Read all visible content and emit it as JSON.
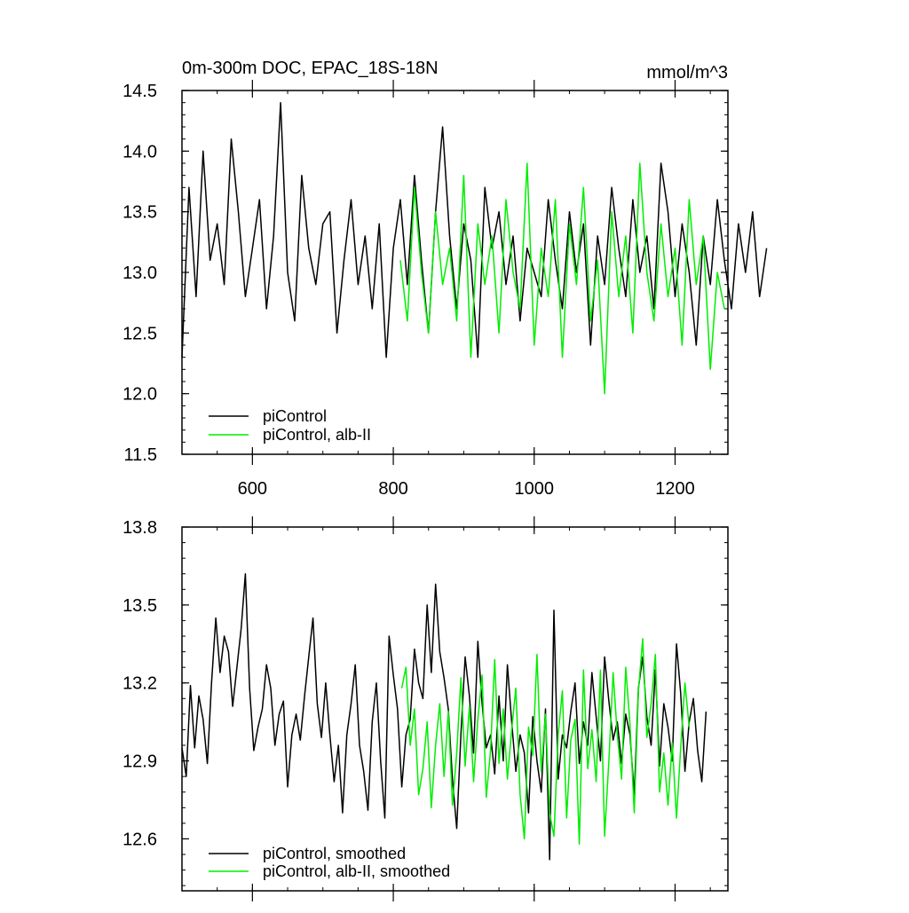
{
  "chart_data": [
    {
      "type": "line",
      "title": "0m-300m DOC, EPAC_18S-18N",
      "units": "mmol/m^3",
      "xlim": [
        500,
        1275
      ],
      "ylim": [
        11.5,
        14.5
      ],
      "xticks": [
        600,
        800,
        1000,
        1200
      ],
      "yticks": [
        11.5,
        12.0,
        12.5,
        13.0,
        13.5,
        14.0,
        14.5
      ],
      "ytick_labels": [
        "11.5",
        "12.0",
        "12.5",
        "13.0",
        "13.5",
        "14.0",
        "14.5"
      ],
      "grid": false,
      "legend_position": "bottom-left",
      "series": [
        {
          "name": "piControl",
          "color": "#000000",
          "x_start": 500,
          "x_step": 10,
          "values": [
            12.3,
            13.7,
            12.8,
            14.0,
            13.1,
            13.4,
            12.9,
            14.1,
            13.5,
            12.8,
            13.2,
            13.6,
            12.7,
            13.3,
            14.4,
            13.0,
            12.6,
            13.8,
            13.2,
            12.9,
            13.4,
            13.5,
            12.5,
            13.1,
            13.6,
            12.9,
            13.3,
            12.7,
            13.4,
            12.3,
            13.2,
            13.6,
            12.9,
            13.8,
            13.1,
            12.5,
            13.5,
            14.2,
            13.3,
            12.7,
            13.4,
            13.1,
            12.3,
            13.7,
            13.2,
            13.5,
            12.9,
            13.3,
            12.6,
            13.2,
            13.0,
            12.8,
            13.6,
            13.1,
            12.7,
            13.5,
            13.0,
            13.4,
            12.4,
            13.3,
            12.9,
            13.7,
            13.2,
            12.8,
            13.6,
            13.0,
            13.3,
            12.7,
            13.9,
            13.5,
            12.8,
            13.4,
            13.0,
            12.4,
            13.3,
            12.9,
            13.6,
            13.1,
            12.7,
            13.4,
            13.0,
            13.5,
            12.8,
            13.2
          ],
          "note_values": ""
        },
        {
          "name": "piControl, alb-II",
          "color": "#00ee00",
          "x_start": 810,
          "x_step": 10,
          "values": [
            13.1,
            12.6,
            13.7,
            13.0,
            12.5,
            13.5,
            12.9,
            13.2,
            12.6,
            13.8,
            12.3,
            13.4,
            12.9,
            13.3,
            12.5,
            13.6,
            13.0,
            12.7,
            13.9,
            12.4,
            13.2,
            12.8,
            13.6,
            12.3,
            13.4,
            12.9,
            13.7,
            12.6,
            13.1,
            12.0,
            13.5,
            12.8,
            13.3,
            12.5,
            13.9,
            13.0,
            12.6,
            13.4,
            12.8,
            13.2,
            12.4,
            13.6,
            12.9,
            13.3,
            12.2,
            13.0,
            12.7
          ],
          "note_values": ""
        }
      ]
    },
    {
      "type": "line",
      "xlim": [
        500,
        1275
      ],
      "ylim": [
        12.4,
        13.8
      ],
      "xticks": [
        600,
        800,
        1000,
        1200
      ],
      "yticks": [
        12.6,
        12.9,
        13.2,
        13.5,
        13.8
      ],
      "ytick_labels": [
        "12.6",
        "12.9",
        "13.2",
        "13.5",
        "13.8"
      ],
      "grid": false,
      "legend_position": "bottom-left",
      "series": [
        {
          "name": "piControl, smoothed",
          "color": "#000000",
          "x_start": 500,
          "x_step": 6,
          "values": [
            12.95,
            12.84,
            13.19,
            12.95,
            13.15,
            13.06,
            12.89,
            13.2,
            13.45,
            13.24,
            13.38,
            13.32,
            13.11,
            13.26,
            13.41,
            13.62,
            13.18,
            12.94,
            13.03,
            13.1,
            13.27,
            13.18,
            12.96,
            13.08,
            13.13,
            12.8,
            13.0,
            13.08,
            12.98,
            13.15,
            13.3,
            13.45,
            13.12,
            12.99,
            13.2,
            13.0,
            12.82,
            12.96,
            12.7,
            13.0,
            13.12,
            13.27,
            12.96,
            12.86,
            12.71,
            13.05,
            13.2,
            12.9,
            12.68,
            13.38,
            13.23,
            13.1,
            12.8,
            13.0,
            13.06,
            13.33,
            13.2,
            13.14,
            13.5,
            13.24,
            13.58,
            13.32,
            13.22,
            13.1,
            12.83,
            12.64,
            13.0,
            13.3,
            13.15,
            12.93,
            13.36,
            13.12,
            12.95,
            13.0,
            12.85,
            13.15,
            12.9,
            13.27,
            13.05,
            12.86,
            13.0,
            12.93,
            12.7,
            13.07,
            12.9,
            12.78,
            13.1,
            12.52,
            13.48,
            12.83,
            13.0,
            12.95,
            13.09,
            13.2,
            12.89,
            13.05,
            12.96,
            13.24,
            13.07,
            12.9,
            13.3,
            13.13,
            12.98,
            13.05,
            12.89,
            13.08,
            13.0,
            12.77,
            13.18,
            13.3,
            13.07,
            12.96,
            13.25,
            12.88,
            13.12,
            13.03,
            12.9,
            13.35,
            13.16,
            12.86,
            13.05,
            13.14,
            12.94,
            12.82,
            13.09
          ],
          "note_values": ""
        },
        {
          "name": "piControl, alb-II, smoothed",
          "color": "#00ee00",
          "x_start": 812,
          "x_step": 6,
          "values": [
            13.18,
            13.26,
            12.96,
            13.1,
            12.77,
            12.87,
            13.05,
            12.72,
            12.96,
            13.12,
            12.84,
            13.09,
            12.73,
            12.93,
            13.22,
            12.88,
            13.11,
            12.82,
            13.06,
            13.23,
            12.76,
            12.94,
            13.29,
            12.89,
            13.1,
            12.83,
            13.02,
            13.18,
            12.77,
            12.6,
            13.03,
            12.92,
            13.31,
            12.86,
            13.08,
            12.7,
            12.61,
            13.0,
            13.17,
            12.68,
            12.98,
            13.06,
            12.58,
            13.25,
            12.87,
            13.02,
            12.82,
            13.25,
            12.61,
            12.9,
            13.24,
            13.0,
            12.83,
            13.26,
            13.04,
            12.7,
            13.17,
            13.37,
            12.99,
            13.12,
            13.31,
            12.78,
            12.93,
            12.73,
            12.97,
            12.68,
            12.95,
            13.2,
            13.03
          ],
          "note_values": ""
        }
      ]
    }
  ]
}
